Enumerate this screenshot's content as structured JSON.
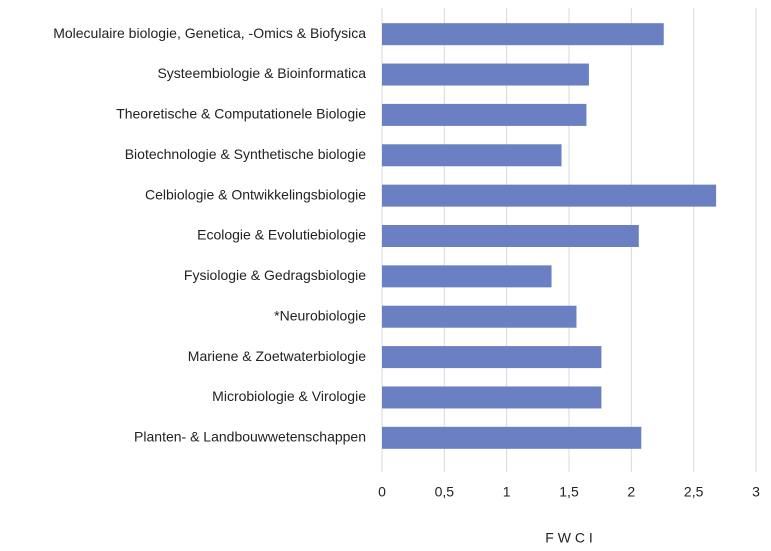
{
  "chart_data": {
    "type": "barh",
    "xlabel": "F W C I",
    "categories": [
      "Moleculaire biologie, Genetica, -Omics & Biofysica",
      "Systeembiologie & Bioinformatica",
      "Theoretische & Computationele Biologie",
      "Biotechnologie & Synthetische biologie",
      "Celbiologie & Ontwikkelingsbiologie",
      "Ecologie & Evolutiebiologie",
      "Fysiologie & Gedragsbiologie",
      "*Neurobiologie",
      "Mariene & Zoetwaterbiologie",
      "Microbiologie & Virologie",
      "Planten- & Landbouwwetenschappen"
    ],
    "values": [
      2.26,
      1.66,
      1.64,
      1.44,
      2.68,
      2.06,
      1.36,
      1.56,
      1.76,
      1.76,
      2.08
    ],
    "color": "#6b80c2",
    "xlim": [
      0,
      3
    ],
    "xticks": [
      0,
      {
        "value": 0.5,
        "label": "0,5"
      },
      1,
      {
        "value": 1.5,
        "label": "1,5"
      },
      2,
      {
        "value": 2.5,
        "label": "2,5"
      },
      3
    ],
    "grid": true
  }
}
